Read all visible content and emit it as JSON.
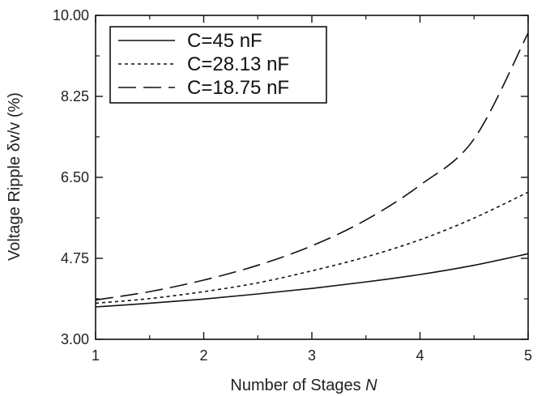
{
  "chart_data": {
    "type": "line",
    "xlabel": "Number of Stages ",
    "xlabel_var": "N",
    "ylabel": "Voltage Ripple δv/v (%)",
    "xlim": [
      1,
      5
    ],
    "ylim": [
      3.0,
      10.0
    ],
    "x_ticks": [
      1,
      2,
      3,
      4,
      5
    ],
    "x_tick_labels": [
      "1",
      "2",
      "3",
      "4",
      "5"
    ],
    "y_ticks": [
      3.0,
      4.75,
      6.5,
      8.25,
      10.0
    ],
    "y_tick_labels": [
      "3.00",
      "4.75",
      "6.50",
      "8.25",
      "10.00"
    ],
    "grid": false,
    "legend_position": "top-left",
    "x": [
      1.0,
      1.5,
      2.0,
      2.5,
      3.0,
      3.5,
      4.0,
      4.5,
      5.0
    ],
    "series": [
      {
        "name": "C=45 nF",
        "style": "solid",
        "color": "#111111",
        "values": [
          3.7,
          3.78,
          3.87,
          3.98,
          4.1,
          4.24,
          4.4,
          4.6,
          4.85
        ]
      },
      {
        "name": "C=28.13 nF",
        "style": "dotted",
        "color": "#111111",
        "values": [
          3.78,
          3.88,
          4.03,
          4.22,
          4.48,
          4.78,
          5.15,
          5.62,
          6.18
        ]
      },
      {
        "name": "C=18.75 nF",
        "style": "dashed",
        "color": "#111111",
        "values": [
          3.85,
          4.03,
          4.28,
          4.6,
          5.02,
          5.58,
          6.33,
          7.33,
          9.62
        ]
      }
    ]
  }
}
